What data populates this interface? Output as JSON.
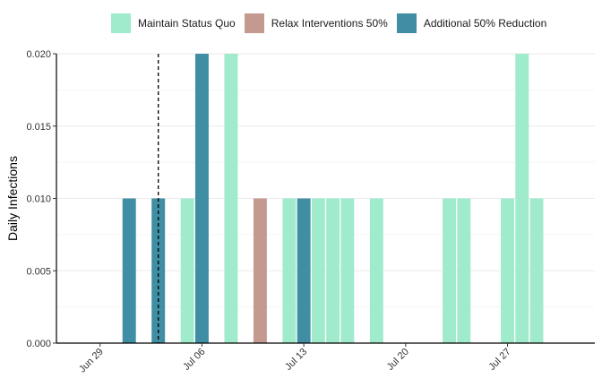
{
  "chart_data": {
    "type": "bar",
    "xlabel": "",
    "ylabel": "Daily Infections",
    "ylim": [
      0,
      0.02
    ],
    "y_ticks": [
      "0.000",
      "0.005",
      "0.010",
      "0.015",
      "0.020"
    ],
    "y_tick_values": [
      0,
      0.005,
      0.01,
      0.015,
      0.02
    ],
    "x_ticks": [
      "Jun 29",
      "Jul 06",
      "Jul 13",
      "Jul 20",
      "Jul 27"
    ],
    "x_tick_values": [
      "2020-06-29",
      "2020-07-06",
      "2020-07-13",
      "2020-07-20",
      "2020-07-27"
    ],
    "xlim": [
      "2020-06-26",
      "2020-08-02"
    ],
    "reference_line": {
      "x": "2020-07-03",
      "style": "dashed",
      "color": "#000000"
    },
    "grid": true,
    "legend_position": "top",
    "series": [
      {
        "name": "Maintain Status Quo",
        "color": "#a1ebcd",
        "points": [
          [
            "2020-07-05",
            0.01
          ],
          [
            "2020-07-08",
            0.02
          ],
          [
            "2020-07-12",
            0.01
          ],
          [
            "2020-07-14",
            0.01
          ],
          [
            "2020-07-15",
            0.01
          ],
          [
            "2020-07-16",
            0.01
          ],
          [
            "2020-07-18",
            0.01
          ],
          [
            "2020-07-23",
            0.01
          ],
          [
            "2020-07-24",
            0.01
          ],
          [
            "2020-07-27",
            0.01
          ],
          [
            "2020-07-28",
            0.02
          ],
          [
            "2020-07-29",
            0.01
          ]
        ]
      },
      {
        "name": "Relax Interventions 50%",
        "color": "#c49a90",
        "points": [
          [
            "2020-07-10",
            0.01
          ]
        ]
      },
      {
        "name": "Additional 50% Reduction",
        "color": "#3f8ea4",
        "points": [
          [
            "2020-07-01",
            0.01
          ],
          [
            "2020-07-03",
            0.01
          ],
          [
            "2020-07-06",
            0.02
          ],
          [
            "2020-07-13",
            0.01
          ]
        ]
      }
    ]
  }
}
